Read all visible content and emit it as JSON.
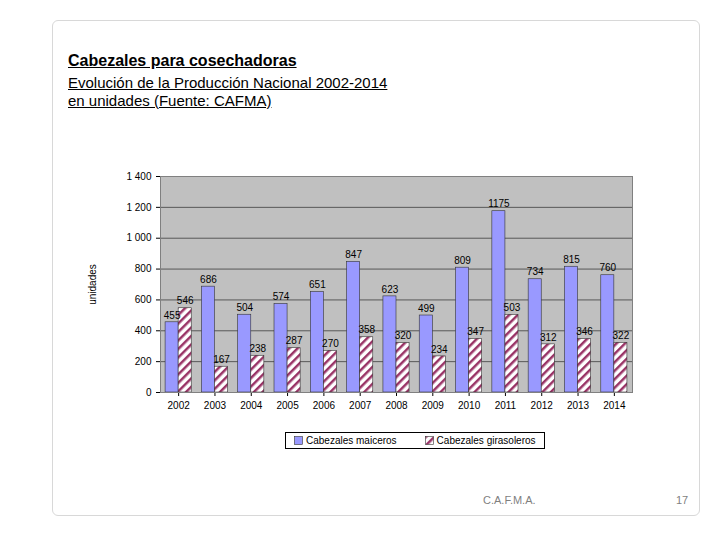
{
  "chart_data": {
    "type": "bar",
    "title": "Cabezales para cosechadoras",
    "subtitle": [
      "Evolución de la Producción Nacional 2002-2014",
      "en unidades (Fuente: CAFMA)"
    ],
    "y_label": "unidades",
    "source_note": "C.A.F.M.A.",
    "page": "17",
    "categories": [
      "2002",
      "2003",
      "2004",
      "2005",
      "2006",
      "2007",
      "2008",
      "2009",
      "2010",
      "2011",
      "2012",
      "2013",
      "2014"
    ],
    "series": [
      {
        "name": "Cabezales maiceros",
        "color": "#9999ff",
        "values": [
          455,
          686,
          504,
          574,
          651,
          847,
          623,
          499,
          809,
          1175,
          734,
          815,
          760
        ]
      },
      {
        "name": "Cabezales girasoleros",
        "color": "#993366",
        "values": [
          546,
          167,
          238,
          287,
          270,
          358,
          320,
          234,
          347,
          503,
          312,
          346,
          322
        ]
      }
    ],
    "ylim": [
      0,
      1400
    ],
    "yticks": [
      0,
      200,
      400,
      600,
      800,
      {
        "value": 1000,
        "label": "1 000"
      },
      {
        "value": 1200,
        "label": "1 200"
      },
      {
        "value": 1400,
        "label": "1 400"
      }
    ],
    "grid": true,
    "data_labels": true,
    "legend": "bottom"
  }
}
